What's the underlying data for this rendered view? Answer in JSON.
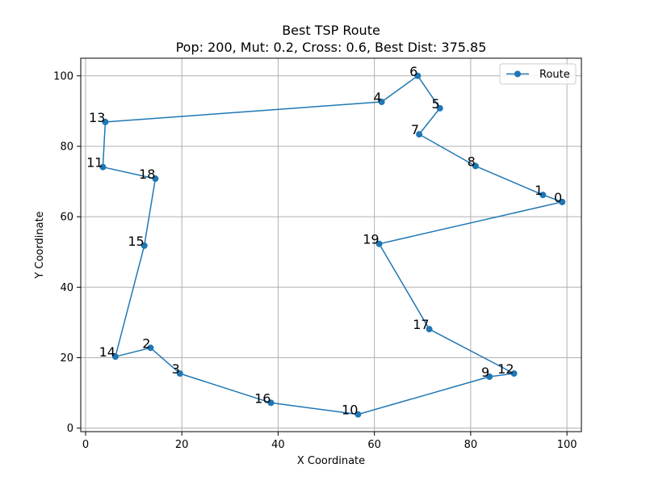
{
  "chart_data": {
    "type": "line",
    "title": "Best TSP Route",
    "subtitle": "Pop: 200, Mut: 0.2, Cross: 0.6, Best Dist: 375.85",
    "xlabel": "X Coordinate",
    "ylabel": "Y Coordinate",
    "xlim": [
      -1,
      103
    ],
    "ylim": [
      -1,
      105
    ],
    "xticks": [
      0,
      20,
      40,
      60,
      80,
      100
    ],
    "yticks": [
      0,
      20,
      40,
      60,
      80,
      100
    ],
    "grid": true,
    "legend": {
      "position": "top-right",
      "entries": [
        "Route"
      ]
    },
    "colors": {
      "series": "#1f77b4"
    },
    "series": [
      {
        "name": "Route",
        "points": [
          {
            "label": "0",
            "x": 99.0,
            "y": 64.2
          },
          {
            "label": "1",
            "x": 95.0,
            "y": 66.2
          },
          {
            "label": "8",
            "x": 81.0,
            "y": 74.4
          },
          {
            "label": "7",
            "x": 69.3,
            "y": 83.4
          },
          {
            "label": "5",
            "x": 73.6,
            "y": 90.8
          },
          {
            "label": "6",
            "x": 69.0,
            "y": 100.0
          },
          {
            "label": "4",
            "x": 61.5,
            "y": 92.6
          },
          {
            "label": "13",
            "x": 4.1,
            "y": 86.9
          },
          {
            "label": "11",
            "x": 3.6,
            "y": 74.1
          },
          {
            "label": "18",
            "x": 14.5,
            "y": 70.8
          },
          {
            "label": "15",
            "x": 12.2,
            "y": 51.8
          },
          {
            "label": "14",
            "x": 6.2,
            "y": 20.3
          },
          {
            "label": "2",
            "x": 13.5,
            "y": 22.8
          },
          {
            "label": "3",
            "x": 19.6,
            "y": 15.5
          },
          {
            "label": "16",
            "x": 38.5,
            "y": 7.2
          },
          {
            "label": "10",
            "x": 56.6,
            "y": 3.9
          },
          {
            "label": "9",
            "x": 83.9,
            "y": 14.6
          },
          {
            "label": "12",
            "x": 89.0,
            "y": 15.5
          },
          {
            "label": "17",
            "x": 71.4,
            "y": 28.1
          },
          {
            "label": "19",
            "x": 61.0,
            "y": 52.3
          },
          {
            "label": "0",
            "x": 99.0,
            "y": 64.2
          }
        ]
      }
    ]
  }
}
